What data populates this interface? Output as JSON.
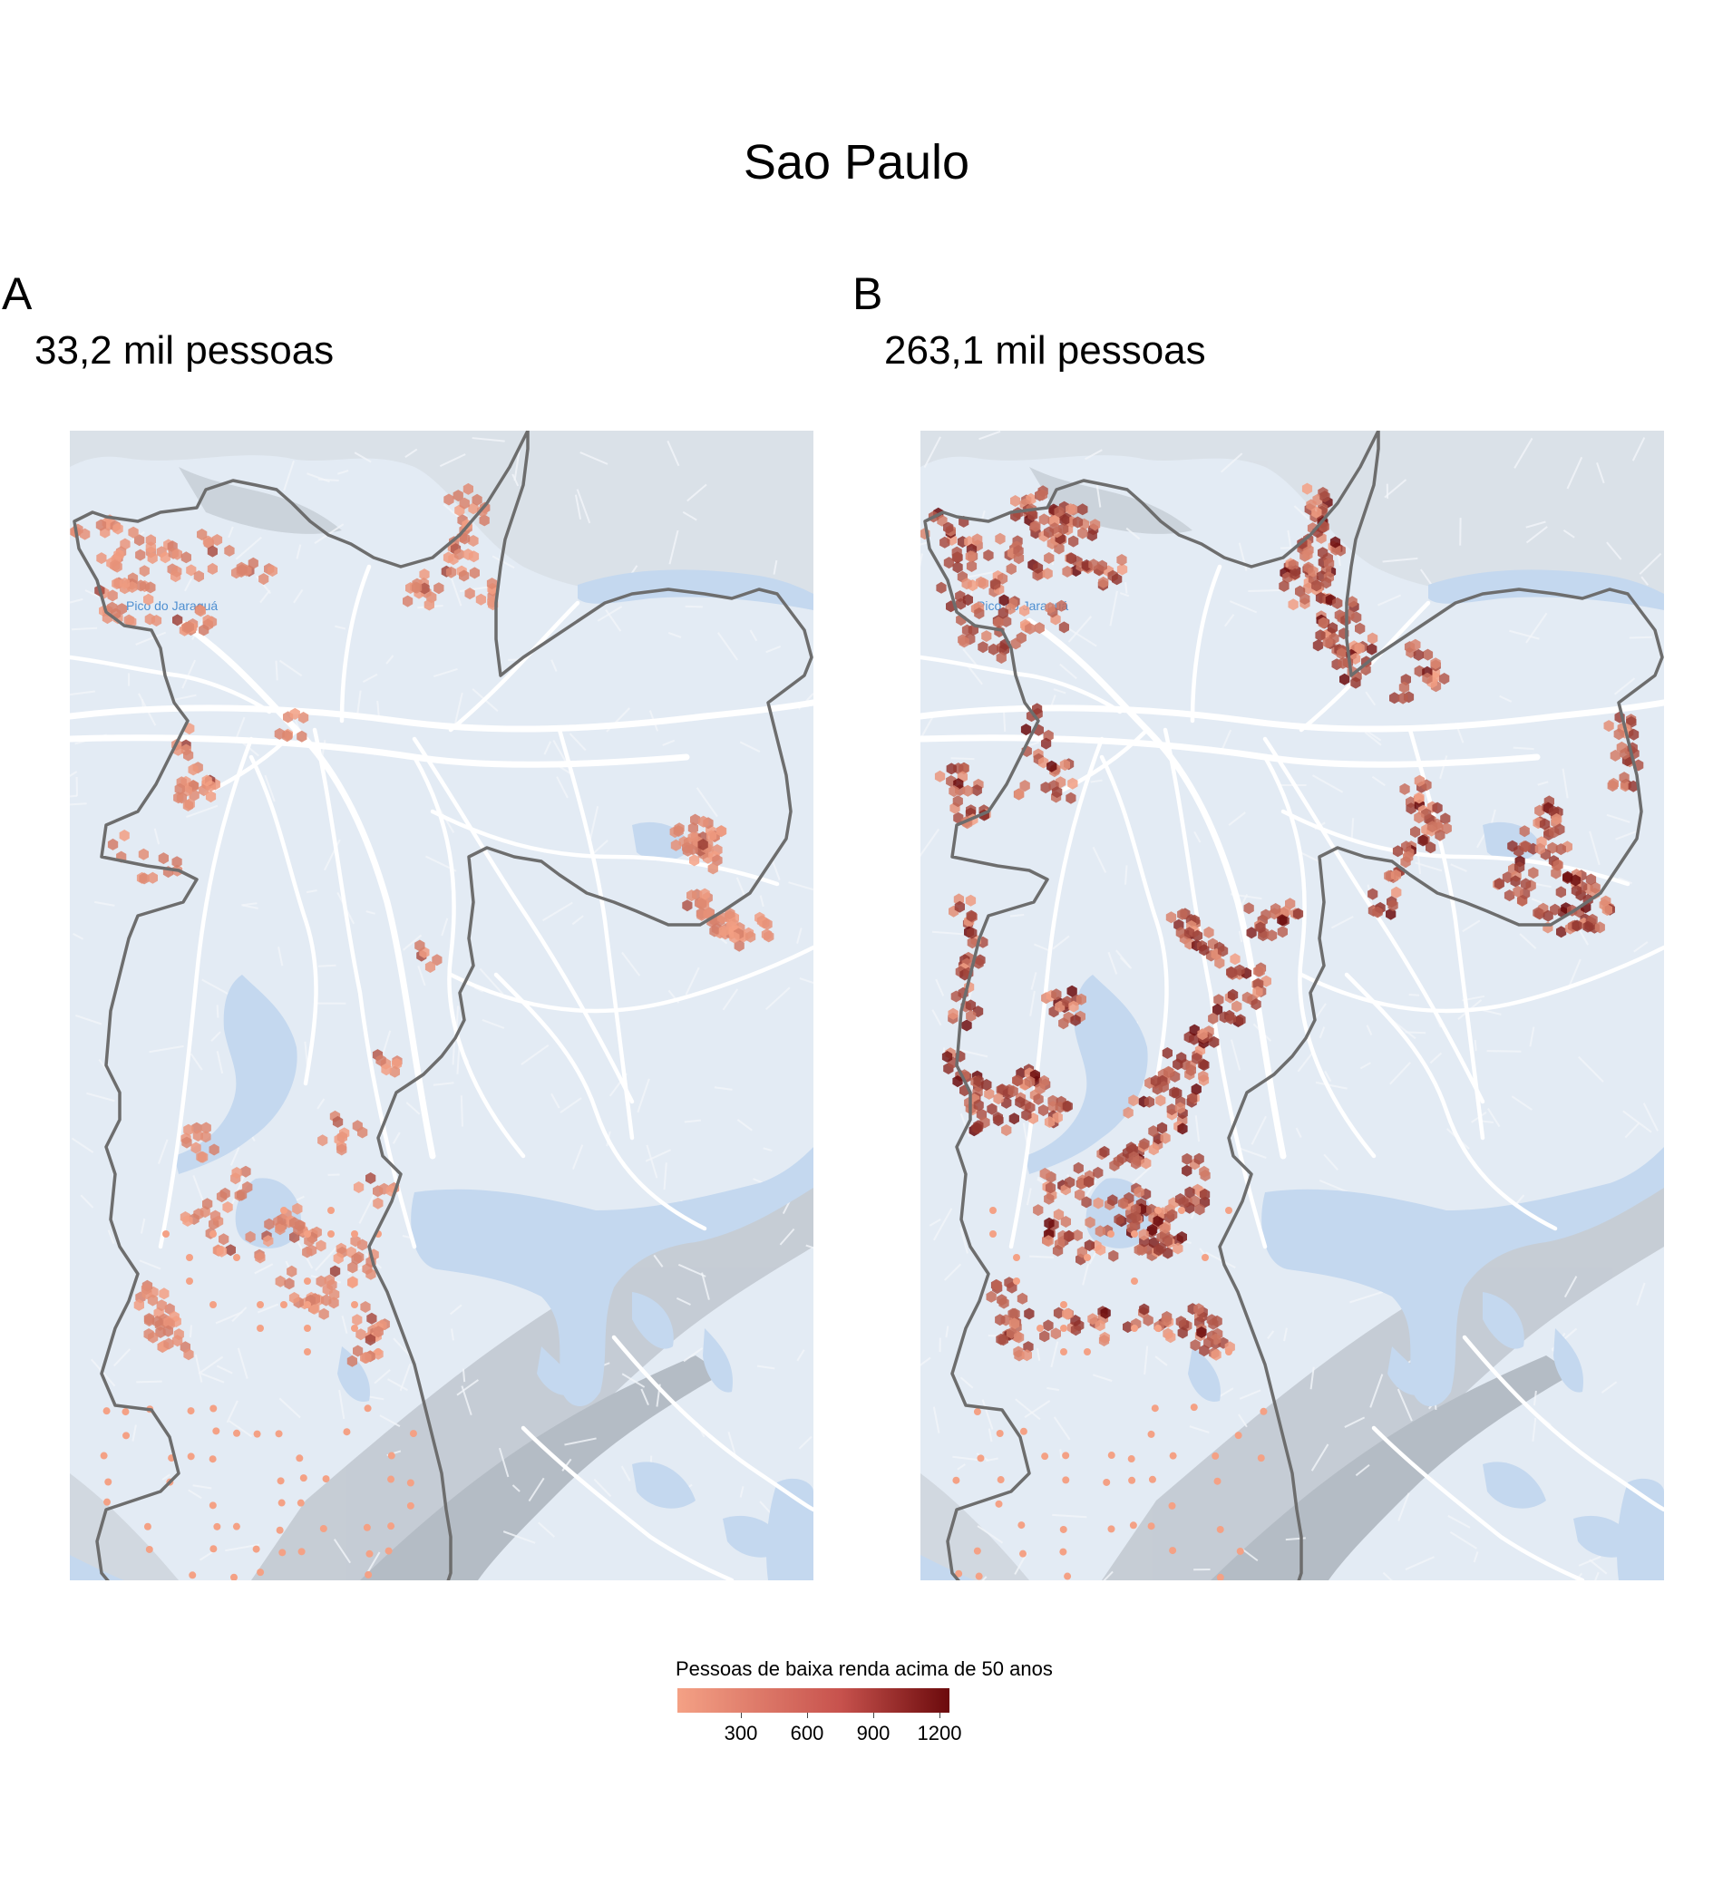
{
  "figure": {
    "title": "Sao Paulo"
  },
  "panels": [
    {
      "letter": "A",
      "subtitle": "33,2 mil pessoas",
      "intensity": 0.25
    },
    {
      "letter": "B",
      "subtitle": "263,1 mil pessoas",
      "intensity": 0.75
    }
  ],
  "basemap": {
    "place_label": "Pico do Jaraguá",
    "colors": {
      "land": "#e3ebf4",
      "water": "#c4d8ef",
      "relief": "#9aa1ab",
      "roads": "#ffffff",
      "boundary": "#6d6d6d"
    }
  },
  "legend": {
    "title": "Pessoas de baixa renda acima de 50 anos",
    "ticks": [
      "300",
      "600",
      "900",
      "1200"
    ],
    "colors": {
      "low": "#f4a185",
      "high": "#6b0a0c"
    }
  }
}
